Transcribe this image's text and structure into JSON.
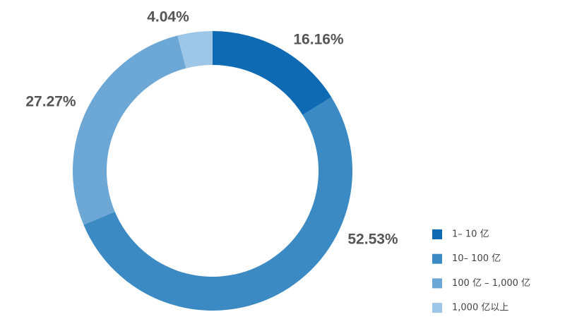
{
  "chart_data": {
    "type": "donut",
    "categories": [
      "1– 10 亿",
      "10– 100 亿",
      "100 亿 – 1,000 亿",
      "1,000 亿以上"
    ],
    "values": [
      16.16,
      52.53,
      27.27,
      4.04
    ],
    "value_labels": [
      "16.16%",
      "52.53%",
      "27.27%",
      "4.04%"
    ],
    "colors": [
      "#0f6ab4",
      "#3b8ac4",
      "#6ca7d5",
      "#9dc6e7"
    ],
    "legend": "bottom-right"
  }
}
